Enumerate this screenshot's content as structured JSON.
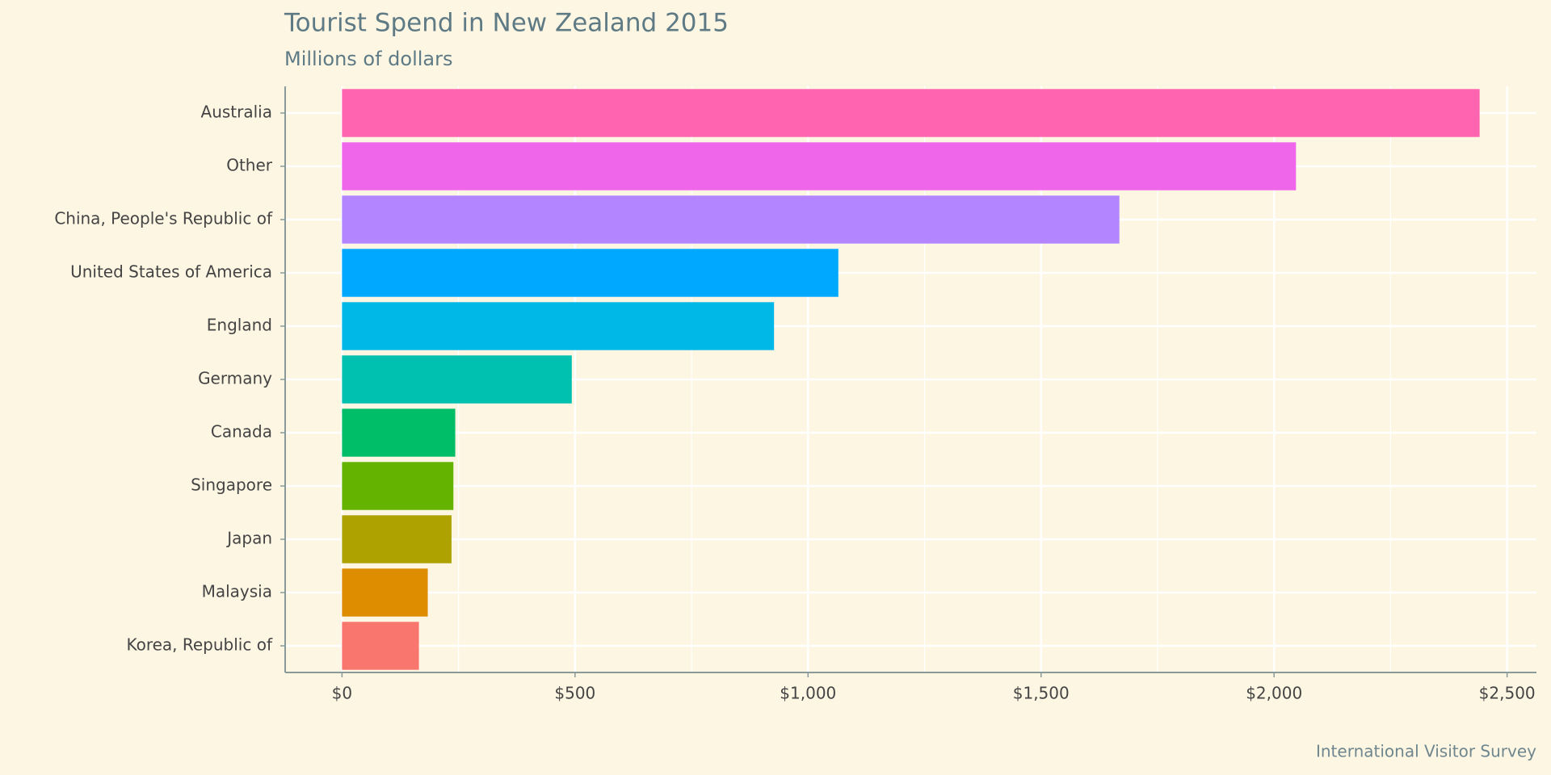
{
  "chart_data": {
    "type": "hbar",
    "title": "Tourist Spend in New Zealand 2015",
    "subtitle": "Millions of dollars",
    "caption": "International Visitor Survey",
    "categories": [
      "Australia",
      "Other",
      "China, People's Republic of",
      "United States of America",
      "England",
      "Germany",
      "Canada",
      "Singapore",
      "Japan",
      "Malaysia",
      "Korea, Republic of"
    ],
    "values": [
      2441,
      2047,
      1668,
      1065,
      927,
      493,
      243,
      239,
      235,
      184,
      165
    ],
    "colors": [
      "#ff64b0",
      "#f066ea",
      "#b385ff",
      "#00a9ff",
      "#00b8e7",
      "#00c0af",
      "#00be67",
      "#63b300",
      "#aea200",
      "#de8c00",
      "#f8766d"
    ],
    "xlim": [
      -122,
      2563
    ],
    "xticks": [
      {
        "value": 0,
        "label": "$0"
      },
      {
        "value": 500,
        "label": "$500"
      },
      {
        "value": 1000,
        "label": "$1,000"
      },
      {
        "value": 1500,
        "label": "$1,500"
      },
      {
        "value": 2000,
        "label": "$2,000"
      },
      {
        "value": 2500,
        "label": "$2,500"
      }
    ],
    "xminor": [
      250,
      750,
      1250,
      1750,
      2250
    ],
    "grid": true
  }
}
